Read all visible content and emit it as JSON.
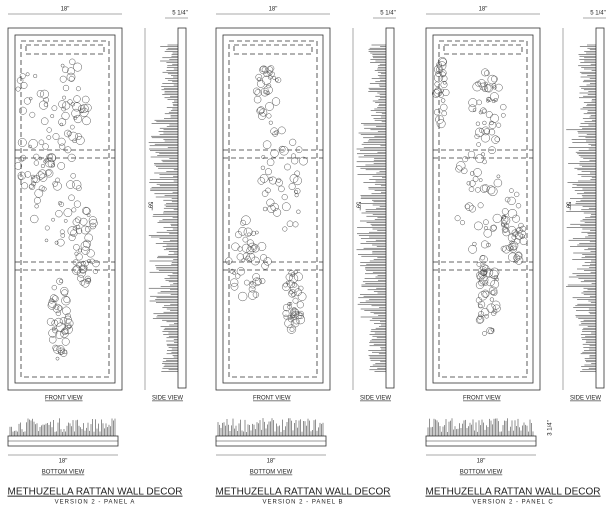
{
  "panels": [
    {
      "width_label": "18\"",
      "depth_label": "5 1/4\"",
      "height_label": "59\"",
      "front_view": "FRONT VIEW",
      "side_view": "SIDE VIEW",
      "bottom_view": "BOTTOM VIEW",
      "bottom_width_label": "18\"",
      "title": "METHUZELLA RATTAN WALL DECOR",
      "subtitle": "VERSION 2 - PANEL A"
    },
    {
      "width_label": "18\"",
      "depth_label": "5 1/4\"",
      "height_label": "59\"",
      "front_view": "FRONT VIEW",
      "side_view": "SIDE VIEW",
      "bottom_view": "BOTTOM VIEW",
      "bottom_width_label": "18\"",
      "title": "METHUZELLA RATTAN WALL DECOR",
      "subtitle": "VERSION 2 - PANEL B"
    },
    {
      "width_label": "18\"",
      "depth_label": "5 1/4\"",
      "height_label": "59\"",
      "front_view": "FRONT VIEW",
      "side_view": "SIDE VIEW",
      "bottom_view": "BOTTOM VIEW",
      "bottom_width_label": "18\"",
      "bottom_depth_label": "3 1/4\"",
      "title": "METHUZELLA RATTAN WALL DECOR",
      "subtitle": "VERSION 2 - PANEL C"
    }
  ]
}
